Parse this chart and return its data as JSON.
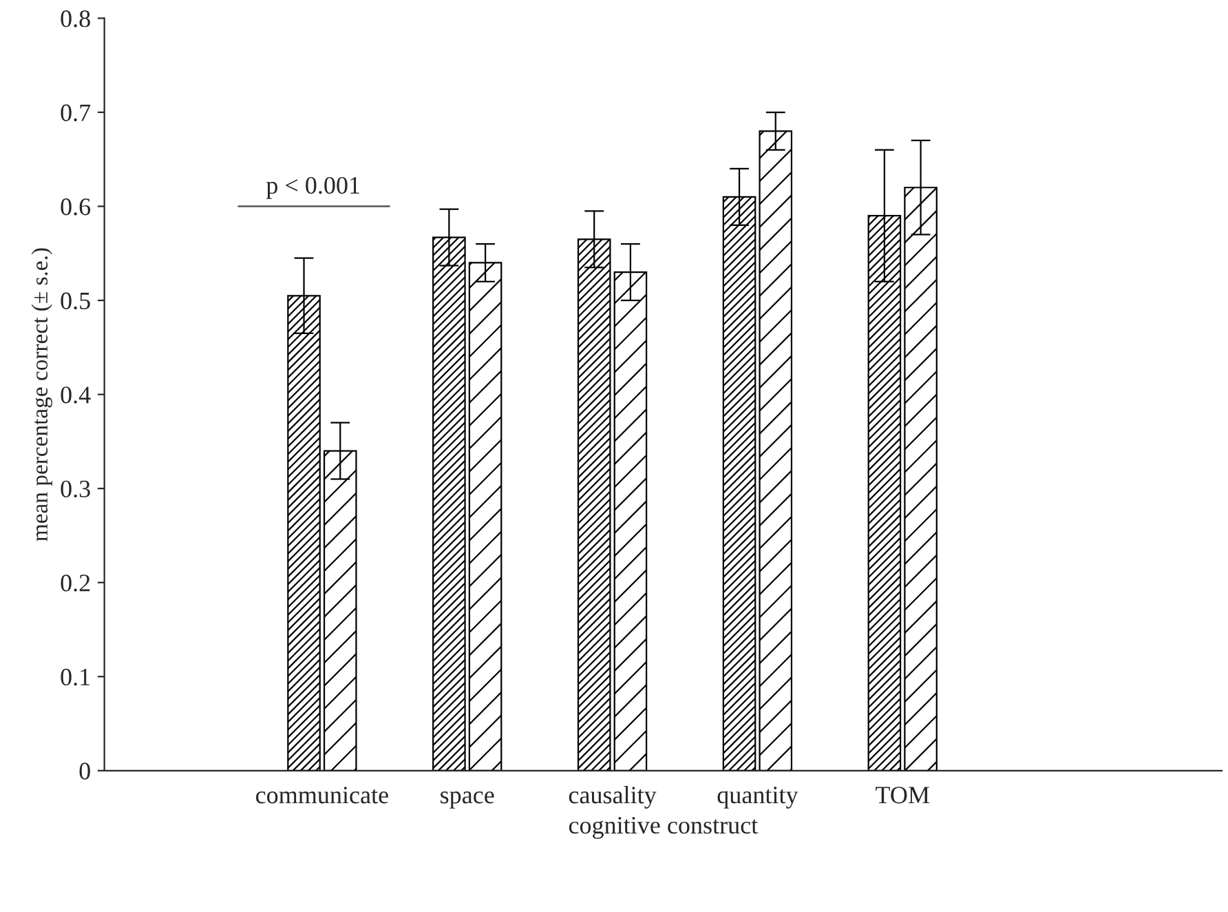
{
  "chart_data": {
    "type": "bar",
    "xlabel": "cognitive construct",
    "ylabel": "mean percentage correct (± s.e.)",
    "categories": [
      "communicate",
      "space",
      "causality",
      "quantity",
      "TOM"
    ],
    "series": [
      {
        "color": "#000000",
        "values": [
          0.505,
          0.567,
          0.565,
          0.61,
          0.59
        ],
        "errors": [
          0.04,
          0.03,
          0.03,
          0.03,
          0.07
        ]
      },
      {
        "color": "#000000",
        "values": [
          0.34,
          0.54,
          0.53,
          0.68,
          0.62
        ],
        "errors": [
          0.03,
          0.02,
          0.03,
          0.02,
          0.05
        ]
      }
    ],
    "ylim": [
      0,
      0.8
    ],
    "yticks": [
      {
        "value": 0,
        "label": "0"
      },
      0.1,
      0.2,
      0.3,
      0.4,
      0.5,
      0.6,
      0.7,
      0.8
    ],
    "annotations": [
      "p < 0.001"
    ],
    "grid": false,
    "legend": false
  }
}
